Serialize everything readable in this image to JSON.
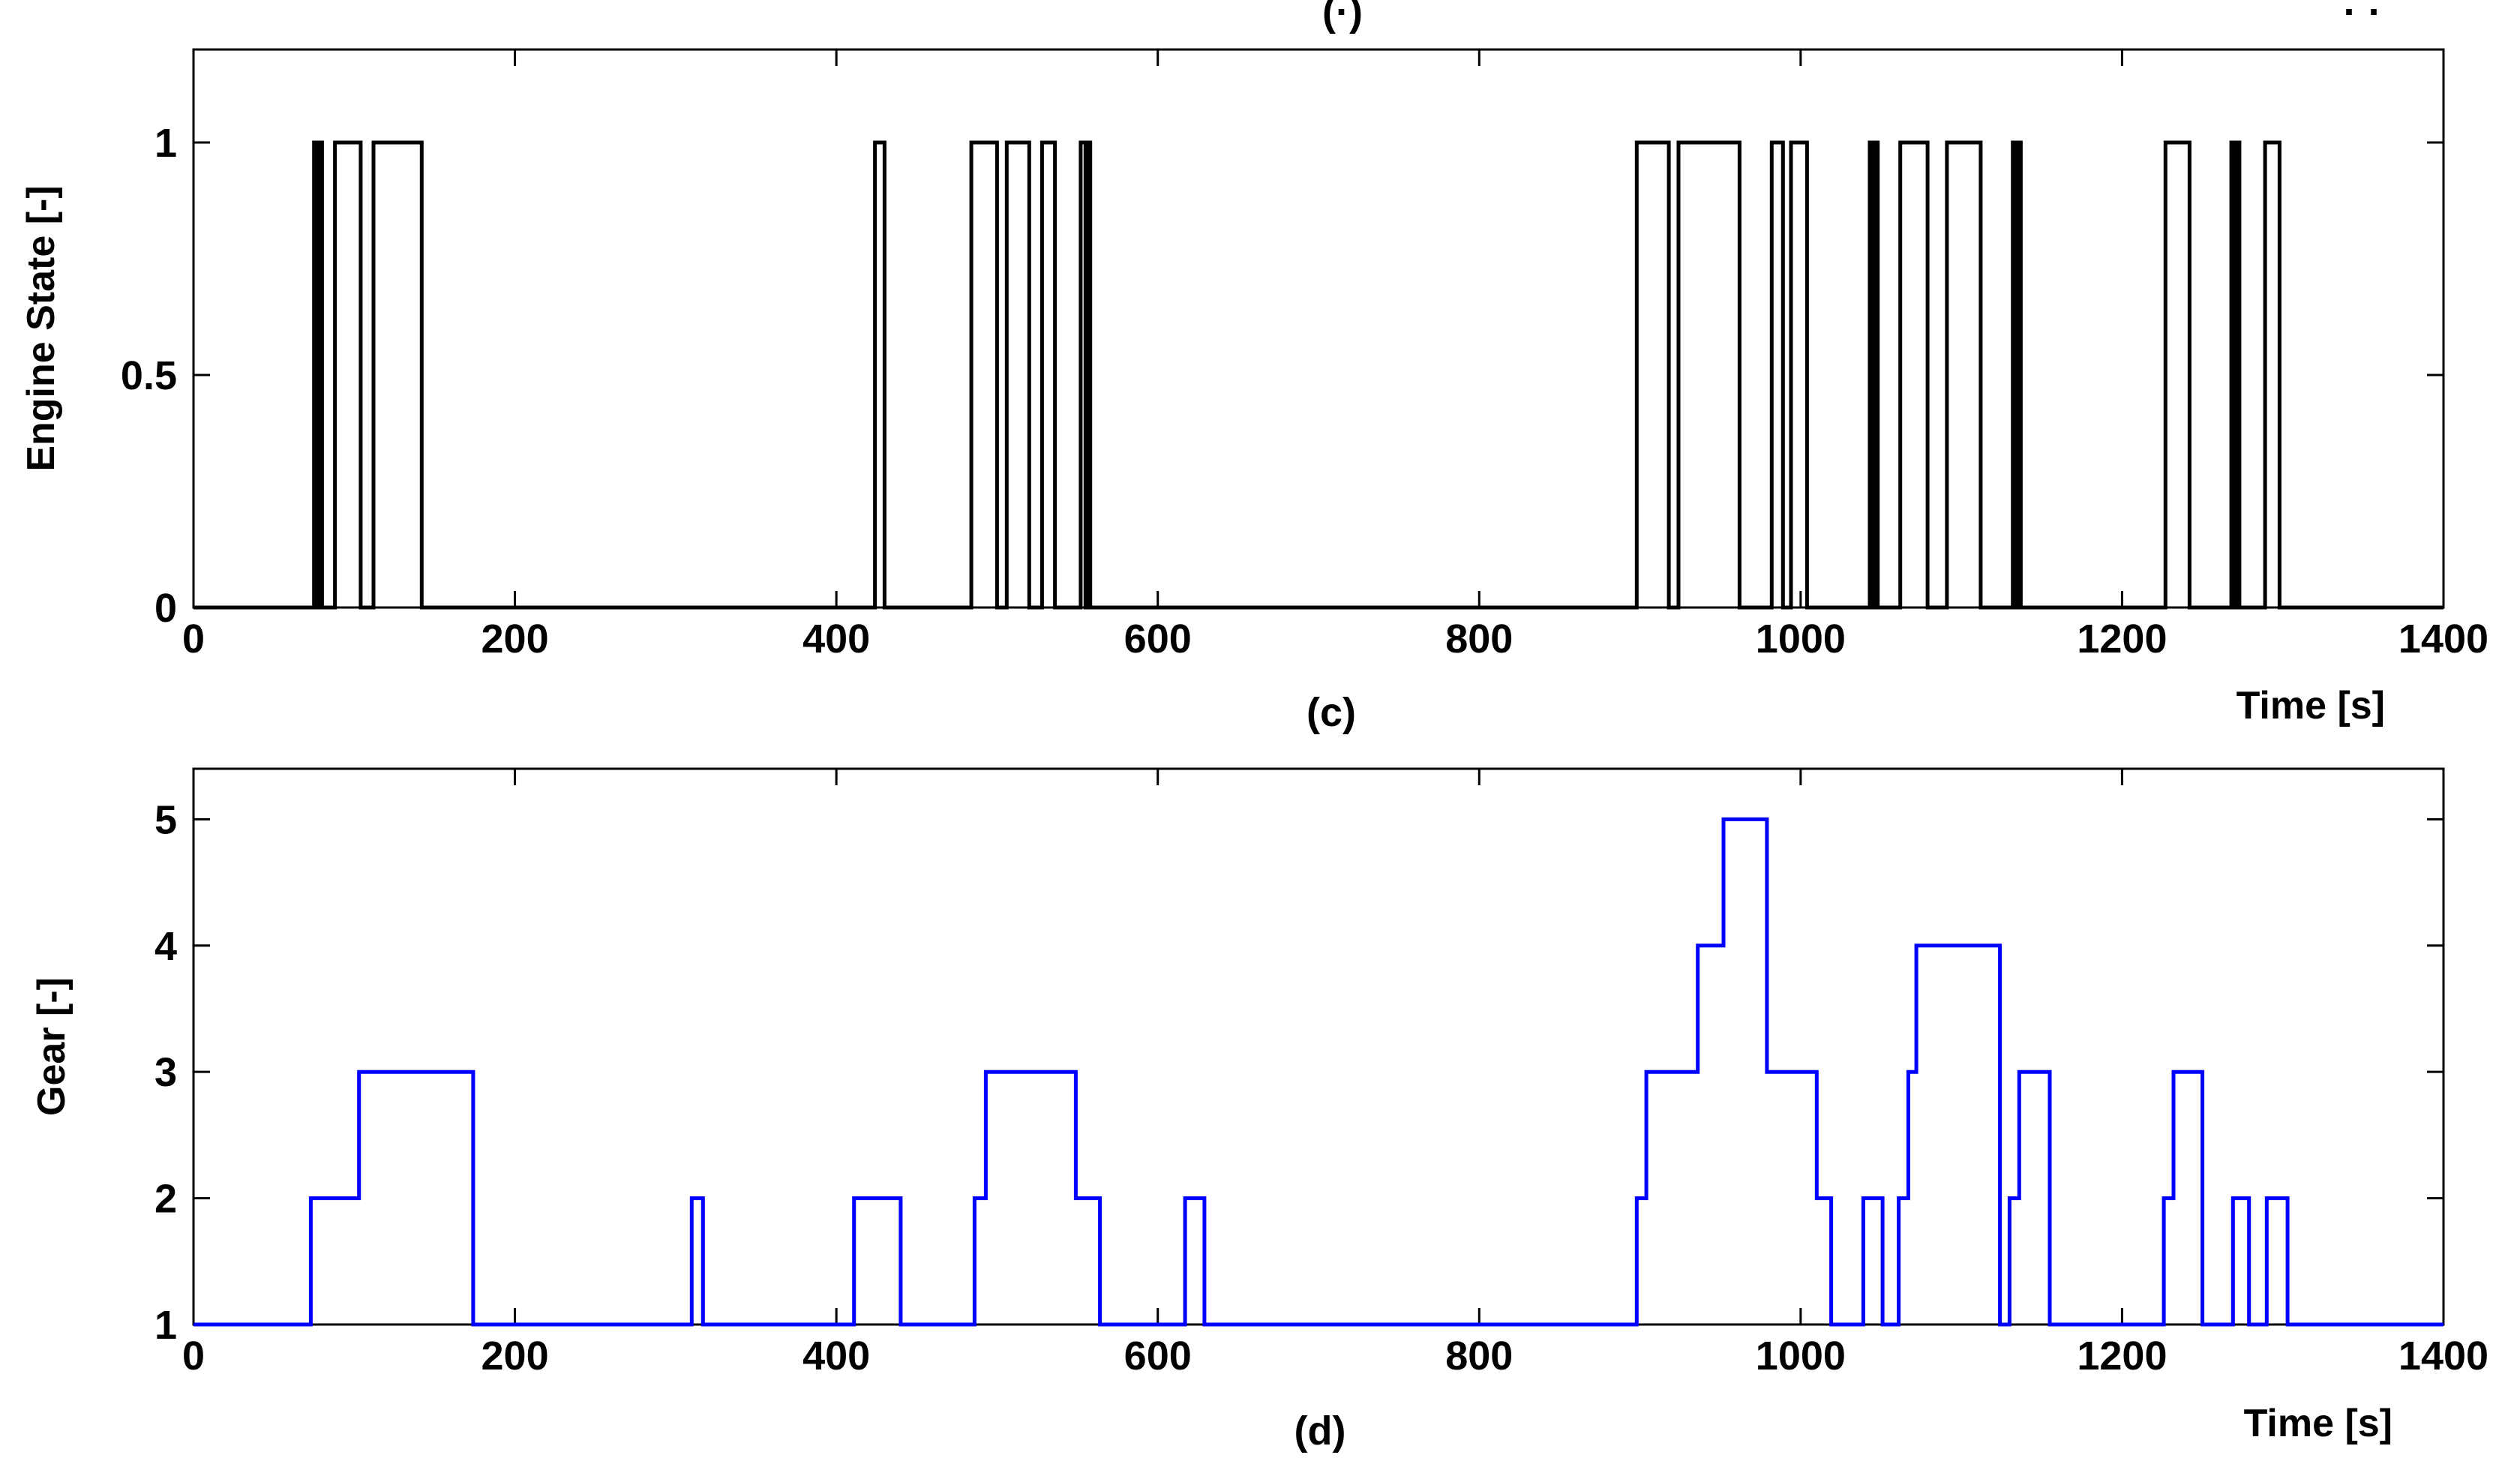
{
  "figure": {
    "top_fragments": [
      "(·)",
      "· ·"
    ]
  },
  "chart_data": [
    {
      "type": "line",
      "panel_label": "(c)",
      "title": "",
      "xlabel": "Time [s]",
      "ylabel": "Engine State [-]",
      "xlim": [
        0,
        1400
      ],
      "ylim": [
        0,
        1.2
      ],
      "xticks": [
        0,
        200,
        400,
        600,
        800,
        1000,
        1200,
        1400
      ],
      "yticks": [
        0,
        0.5,
        1
      ],
      "ytick_labels": [
        "0",
        "0.5",
        "1"
      ],
      "grid": false,
      "line_color": "#000000",
      "series": [
        {
          "step": true,
          "segments_on": [
            [
              75,
              77
            ],
            [
              78,
              80
            ],
            [
              88,
              104
            ],
            [
              112,
              142
            ],
            [
              424,
              430
            ],
            [
              484,
              500
            ],
            [
              506,
              520
            ],
            [
              528,
              536
            ],
            [
              552,
              555
            ],
            [
              556,
              558
            ],
            [
              898,
              918
            ],
            [
              924,
              962
            ],
            [
              982,
              989
            ],
            [
              994,
              1004
            ],
            [
              1043,
              1045
            ],
            [
              1046,
              1048
            ],
            [
              1062,
              1079
            ],
            [
              1091,
              1112
            ],
            [
              1132,
              1134
            ],
            [
              1135,
              1137
            ],
            [
              1227,
              1242
            ],
            [
              1268,
              1270
            ],
            [
              1271,
              1273
            ],
            [
              1289,
              1298
            ]
          ]
        }
      ]
    },
    {
      "type": "line",
      "panel_label": "(d)",
      "title": "",
      "xlabel": "Time [s]",
      "ylabel": "Gear [-]",
      "xlim": [
        0,
        1400
      ],
      "ylim": [
        1,
        5.4
      ],
      "xticks": [
        0,
        200,
        400,
        600,
        800,
        1000,
        1200,
        1400
      ],
      "yticks": [
        1,
        2,
        3,
        4,
        5
      ],
      "grid": false,
      "line_color": "#0000ff",
      "series": [
        {
          "step": true,
          "x": [
            0,
            73,
            103,
            174,
            310,
            317,
            411,
            440,
            486,
            493,
            549,
            564,
            617,
            629,
            898,
            904,
            936,
            952,
            979,
            1010,
            1019,
            1039,
            1051,
            1061,
            1067,
            1072,
            1083,
            1124,
            1130,
            1136,
            1155,
            1226,
            1232,
            1250,
            1269,
            1279,
            1290,
            1303,
            1400
          ],
          "y": [
            1,
            2,
            3,
            1,
            2,
            1,
            2,
            1,
            2,
            3,
            2,
            1,
            2,
            1,
            2,
            3,
            4,
            5,
            3,
            2,
            1,
            2,
            1,
            2,
            3,
            4,
            4,
            1,
            2,
            3,
            1,
            2,
            3,
            1,
            2,
            1,
            2,
            1,
            1
          ]
        }
      ]
    }
  ]
}
